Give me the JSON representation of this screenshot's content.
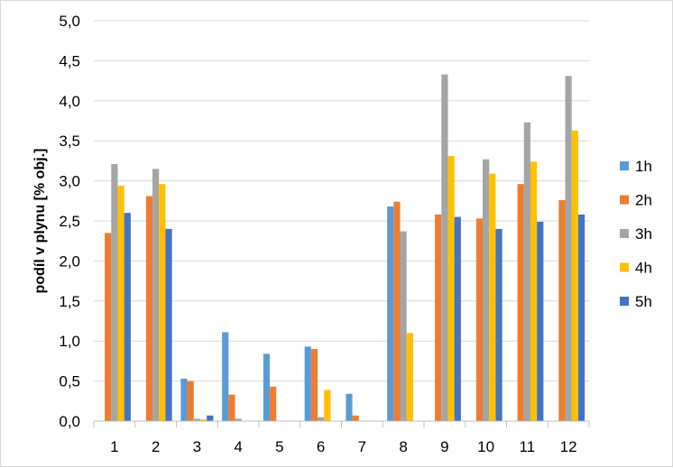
{
  "chart_data": {
    "type": "bar",
    "title": "",
    "xlabel": "",
    "ylabel": "podíl v plynu [% obj.]",
    "ylim": [
      0,
      5
    ],
    "ytick_step": 0.5,
    "ytick_labels": [
      "0,0",
      "0,5",
      "1,0",
      "1,5",
      "2,0",
      "2,5",
      "3,0",
      "3,5",
      "4,0",
      "4,5",
      "5,0"
    ],
    "grid": true,
    "legend_position": "right",
    "categories": [
      "1",
      "2",
      "3",
      "4",
      "5",
      "6",
      "7",
      "8",
      "9",
      "10",
      "11",
      "12"
    ],
    "series": [
      {
        "name": "1h",
        "color": "#5b9bd5",
        "values": [
          0,
          0,
          0.53,
          1.11,
          0.84,
          0.93,
          0.34,
          2.68,
          0,
          0,
          0,
          0
        ]
      },
      {
        "name": "2h",
        "color": "#ed7d31",
        "values": [
          2.35,
          2.81,
          0.5,
          0.33,
          0.43,
          0.9,
          0.07,
          2.74,
          2.58,
          2.53,
          2.96,
          2.76
        ]
      },
      {
        "name": "3h",
        "color": "#a5a5a5",
        "values": [
          3.21,
          3.15,
          0.03,
          0.03,
          0,
          0.05,
          0,
          2.37,
          4.33,
          3.27,
          3.73,
          4.31
        ]
      },
      {
        "name": "4h",
        "color": "#ffc000",
        "values": [
          2.94,
          2.96,
          0.02,
          0,
          0,
          0.39,
          0,
          1.1,
          3.31,
          3.09,
          3.24,
          3.63
        ]
      },
      {
        "name": "5h",
        "color": "#4472c4",
        "values": [
          2.6,
          2.4,
          0.07,
          0,
          0,
          0,
          0,
          0,
          2.55,
          2.4,
          2.49,
          2.58
        ]
      }
    ]
  }
}
